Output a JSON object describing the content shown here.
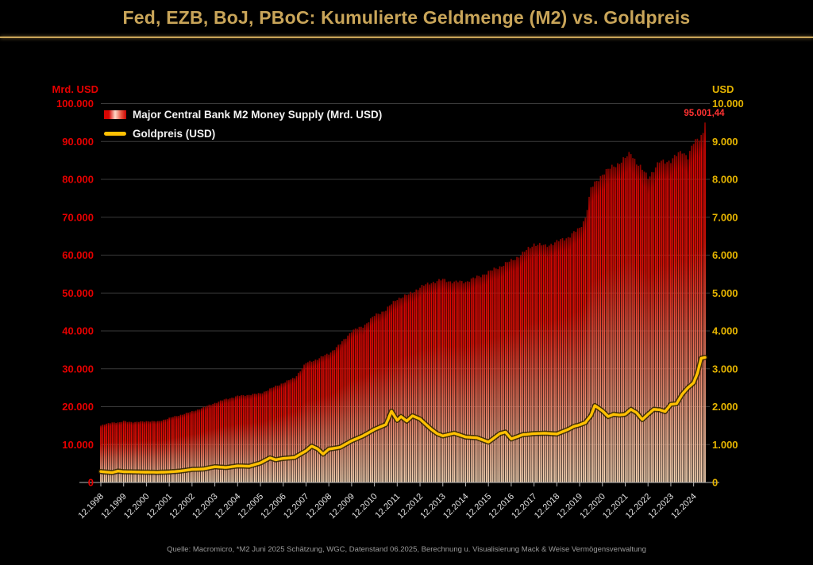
{
  "page": {
    "title": "Fed, EZB, BoJ, PBoC: Kumulierte Geldmenge (M2) vs. Goldpreis",
    "footer": "Quelle: Macromicro, *M2 Juni 2025 Schätzung, WGC, Datenstand 06.2025, Berechnung u. Visualisierung Mack & Weise Vermögensverwaltung"
  },
  "colors": {
    "background": "#000000",
    "title_gold": "#c9a559",
    "left_axis_red": "#e60000",
    "right_axis_gold": "#e5b400",
    "gold_line": "#ffc103",
    "bar_top_red": "#d80603",
    "bar_bottom_pale": "#f7d6b6",
    "gridline": "#3a3a3a",
    "x_label": "#e2e2e2",
    "annotation_red": "#ff3232"
  },
  "chart_data": {
    "type": "combo",
    "title": "Fed, EZB, BoJ, PBoC: Kumulierte Geldmenge (M2) vs. Goldpreis",
    "grid": true,
    "legend_position": "top-left",
    "left_axis": {
      "label": "Mrd. USD",
      "range": [
        0,
        100000
      ],
      "ticks": [
        "0",
        "10.000",
        "20.000",
        "30.000",
        "40.000",
        "50.000",
        "60.000",
        "70.000",
        "80.000",
        "90.000",
        "100.000"
      ]
    },
    "right_axis": {
      "label": "USD",
      "range": [
        0,
        10000
      ],
      "ticks": [
        "0",
        "1.000",
        "2.000",
        "3.000",
        "4.000",
        "5.000",
        "6.000",
        "7.000",
        "8.000",
        "9.000",
        "10.000"
      ]
    },
    "x_axis": {
      "tick_labels": [
        "12.1998",
        "12.1999",
        "12.2000",
        "12.2001",
        "12.2002",
        "12.2003",
        "12.2004",
        "12.2005",
        "12.2006",
        "12.2007",
        "12.2008",
        "12.2009",
        "12.2010",
        "12.2011",
        "12.2012",
        "12.2013",
        "12.2014",
        "12.2015",
        "12.2016",
        "12.2017",
        "12.2018",
        "12.2019",
        "12.2020",
        "12.2021",
        "12.2022",
        "12.2023",
        "12.2024"
      ],
      "month_index_zero": "12.1998",
      "last_month_index": 318,
      "last_month": "06.2025"
    },
    "annotation": {
      "text": "95.001,44",
      "value": 95001.44,
      "series": "M2"
    },
    "series": [
      {
        "name": "Major Central Bank M2 Money Supply (Mrd. USD)",
        "type": "bar",
        "axis": "left",
        "unit": "Mrd. USD",
        "anchors_month_value": [
          [
            0,
            15000
          ],
          [
            6,
            15900
          ],
          [
            10,
            15800
          ],
          [
            12,
            16200
          ],
          [
            18,
            15900
          ],
          [
            24,
            16200
          ],
          [
            30,
            16100
          ],
          [
            36,
            17000
          ],
          [
            48,
            18700
          ],
          [
            54,
            19800
          ],
          [
            60,
            21000
          ],
          [
            66,
            22000
          ],
          [
            72,
            22800
          ],
          [
            84,
            23500
          ],
          [
            96,
            26300
          ],
          [
            102,
            27600
          ],
          [
            108,
            31500
          ],
          [
            114,
            32600
          ],
          [
            120,
            34000
          ],
          [
            126,
            36500
          ],
          [
            132,
            40000
          ],
          [
            138,
            41200
          ],
          [
            144,
            44000
          ],
          [
            150,
            45600
          ],
          [
            156,
            48500
          ],
          [
            162,
            49600
          ],
          [
            168,
            51500
          ],
          [
            174,
            52800
          ],
          [
            180,
            53500
          ],
          [
            186,
            52900
          ],
          [
            192,
            53000
          ],
          [
            198,
            54200
          ],
          [
            204,
            55500
          ],
          [
            216,
            58500
          ],
          [
            222,
            60400
          ],
          [
            228,
            63000
          ],
          [
            234,
            62400
          ],
          [
            240,
            63500
          ],
          [
            246,
            64800
          ],
          [
            252,
            67000
          ],
          [
            255,
            70000
          ],
          [
            258,
            77500
          ],
          [
            264,
            81500
          ],
          [
            270,
            83500
          ],
          [
            276,
            85500
          ],
          [
            279,
            87000
          ],
          [
            282,
            84500
          ],
          [
            288,
            80500
          ],
          [
            294,
            84500
          ],
          [
            300,
            85000
          ],
          [
            306,
            87500
          ],
          [
            309,
            86000
          ],
          [
            312,
            89500
          ],
          [
            315,
            91000
          ],
          [
            317,
            92500
          ],
          [
            318,
            95001.44
          ]
        ]
      },
      {
        "name": "Goldpreis (USD)",
        "type": "line",
        "axis": "right",
        "unit": "USD",
        "anchors_month_value": [
          [
            0,
            288
          ],
          [
            6,
            262
          ],
          [
            9,
            300
          ],
          [
            12,
            283
          ],
          [
            18,
            278
          ],
          [
            24,
            272
          ],
          [
            30,
            268
          ],
          [
            36,
            278
          ],
          [
            42,
            302
          ],
          [
            48,
            345
          ],
          [
            54,
            355
          ],
          [
            60,
            415
          ],
          [
            66,
            395
          ],
          [
            72,
            438
          ],
          [
            78,
            428
          ],
          [
            84,
            515
          ],
          [
            89,
            650
          ],
          [
            92,
            600
          ],
          [
            96,
            635
          ],
          [
            102,
            660
          ],
          [
            108,
            835
          ],
          [
            111,
            960
          ],
          [
            114,
            890
          ],
          [
            117,
            750
          ],
          [
            120,
            880
          ],
          [
            126,
            930
          ],
          [
            132,
            1100
          ],
          [
            138,
            1230
          ],
          [
            144,
            1400
          ],
          [
            150,
            1530
          ],
          [
            153,
            1880
          ],
          [
            156,
            1640
          ],
          [
            158,
            1740
          ],
          [
            161,
            1620
          ],
          [
            164,
            1760
          ],
          [
            168,
            1675
          ],
          [
            174,
            1400
          ],
          [
            177,
            1290
          ],
          [
            180,
            1230
          ],
          [
            186,
            1300
          ],
          [
            192,
            1200
          ],
          [
            198,
            1180
          ],
          [
            204,
            1065
          ],
          [
            210,
            1290
          ],
          [
            213,
            1330
          ],
          [
            216,
            1150
          ],
          [
            222,
            1260
          ],
          [
            228,
            1290
          ],
          [
            234,
            1300
          ],
          [
            240,
            1280
          ],
          [
            246,
            1400
          ],
          [
            249,
            1480
          ],
          [
            252,
            1520
          ],
          [
            255,
            1580
          ],
          [
            258,
            1770
          ],
          [
            260,
            2030
          ],
          [
            264,
            1890
          ],
          [
            267,
            1740
          ],
          [
            270,
            1800
          ],
          [
            273,
            1780
          ],
          [
            276,
            1800
          ],
          [
            279,
            1930
          ],
          [
            282,
            1840
          ],
          [
            285,
            1660
          ],
          [
            288,
            1800
          ],
          [
            291,
            1930
          ],
          [
            294,
            1920
          ],
          [
            297,
            1870
          ],
          [
            300,
            2060
          ],
          [
            303,
            2080
          ],
          [
            306,
            2330
          ],
          [
            309,
            2500
          ],
          [
            312,
            2630
          ],
          [
            314,
            2880
          ],
          [
            316,
            3280
          ],
          [
            318,
            3300
          ]
        ]
      }
    ]
  }
}
